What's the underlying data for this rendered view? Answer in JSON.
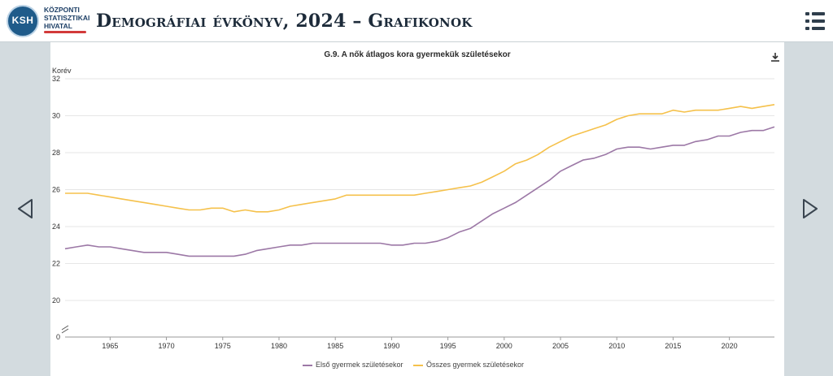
{
  "header": {
    "logo_abbr": "KSH",
    "logo_lines": [
      "KÖZPONTI",
      "STATISZTIKAI",
      "HIVATAL"
    ],
    "title": "Demográfiai évkönyv, 2024 – Grafikonok"
  },
  "icons": {
    "menu": "hamburger-menu-icon",
    "prev": "triangle-left-icon",
    "next": "triangle-right-icon",
    "download": "download-icon"
  },
  "colors": {
    "first_child": "#9c78a6",
    "all_children": "#f5c14b",
    "page_bg": "#d3dbdf"
  },
  "chart_data": {
    "type": "line",
    "title": "G.9. A nők átlagos kora gyermekük születésekor",
    "ylabel": "Korév",
    "xlabel": "",
    "ylim": [
      0,
      32
    ],
    "y_axis_break": "between 0 and 20",
    "yticks": [
      0,
      20,
      22,
      24,
      26,
      28,
      30,
      32
    ],
    "xlim": [
      1961,
      2024
    ],
    "xticks": [
      1965,
      1970,
      1975,
      1980,
      1985,
      1990,
      1995,
      2000,
      2005,
      2010,
      2015,
      2020
    ],
    "grid": "horizontal",
    "legend_position": "bottom",
    "x": [
      1961,
      1962,
      1963,
      1964,
      1965,
      1966,
      1967,
      1968,
      1969,
      1970,
      1971,
      1972,
      1973,
      1974,
      1975,
      1976,
      1977,
      1978,
      1979,
      1980,
      1981,
      1982,
      1983,
      1984,
      1985,
      1986,
      1987,
      1988,
      1989,
      1990,
      1991,
      1992,
      1993,
      1994,
      1995,
      1996,
      1997,
      1998,
      1999,
      2000,
      2001,
      2002,
      2003,
      2004,
      2005,
      2006,
      2007,
      2008,
      2009,
      2010,
      2011,
      2012,
      2013,
      2014,
      2015,
      2016,
      2017,
      2018,
      2019,
      2020,
      2021,
      2022,
      2023,
      2024
    ],
    "series": [
      {
        "name": "Első gyermek születésekor",
        "color": "#9c78a6",
        "values": [
          22.8,
          22.9,
          23.0,
          22.9,
          22.9,
          22.8,
          22.7,
          22.6,
          22.6,
          22.6,
          22.5,
          22.4,
          22.4,
          22.4,
          22.4,
          22.4,
          22.5,
          22.7,
          22.8,
          22.9,
          23.0,
          23.0,
          23.1,
          23.1,
          23.1,
          23.1,
          23.1,
          23.1,
          23.1,
          23.0,
          23.0,
          23.1,
          23.1,
          23.2,
          23.4,
          23.7,
          23.9,
          24.3,
          24.7,
          25.0,
          25.3,
          25.7,
          26.1,
          26.5,
          27.0,
          27.3,
          27.6,
          27.7,
          27.9,
          28.2,
          28.3,
          28.3,
          28.2,
          28.3,
          28.4,
          28.4,
          28.6,
          28.7,
          28.9,
          28.9,
          29.1,
          29.2,
          29.2,
          29.4
        ]
      },
      {
        "name": "Összes gyermek születésekor",
        "color": "#f5c14b",
        "values": [
          25.8,
          25.8,
          25.8,
          25.7,
          25.6,
          25.5,
          25.4,
          25.3,
          25.2,
          25.1,
          25.0,
          24.9,
          24.9,
          25.0,
          25.0,
          24.8,
          24.9,
          24.8,
          24.8,
          24.9,
          25.1,
          25.2,
          25.3,
          25.4,
          25.5,
          25.7,
          25.7,
          25.7,
          25.7,
          25.7,
          25.7,
          25.7,
          25.8,
          25.9,
          26.0,
          26.1,
          26.2,
          26.4,
          26.7,
          27.0,
          27.4,
          27.6,
          27.9,
          28.3,
          28.6,
          28.9,
          29.1,
          29.3,
          29.5,
          29.8,
          30.0,
          30.1,
          30.1,
          30.1,
          30.3,
          30.2,
          30.3,
          30.3,
          30.3,
          30.4,
          30.5,
          30.4,
          30.5,
          30.6
        ]
      }
    ]
  }
}
